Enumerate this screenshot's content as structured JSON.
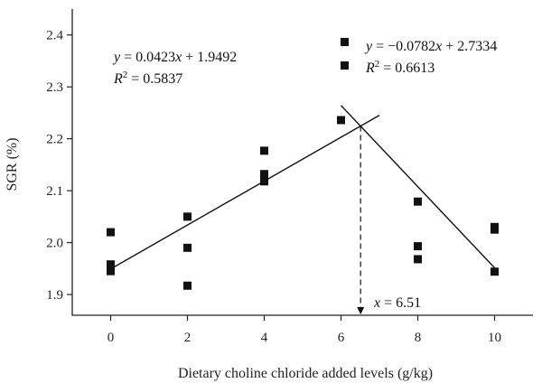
{
  "chart_data": {
    "type": "scatter",
    "title": "",
    "xlabel": "Dietary choline chloride added levels (g/kg)",
    "ylabel": "SGR (%)",
    "xlim": [
      -1,
      11
    ],
    "ylim": [
      1.86,
      2.45
    ],
    "xticks": [
      0,
      2,
      4,
      6,
      8,
      10
    ],
    "xtick_labels": [
      "0",
      "2",
      "4",
      "6",
      "8",
      "10"
    ],
    "yticks": [
      1.9,
      2.0,
      2.1,
      2.2,
      2.3,
      2.4
    ],
    "ytick_labels": [
      "1.9",
      "2.0",
      "2.1",
      "2.2",
      "2.3",
      "2.4"
    ],
    "grid": false,
    "points": [
      {
        "x": 0,
        "y": 2.02
      },
      {
        "x": 0,
        "y": 1.958
      },
      {
        "x": 0,
        "y": 1.945
      },
      {
        "x": 2,
        "y": 2.05
      },
      {
        "x": 2,
        "y": 1.99
      },
      {
        "x": 2,
        "y": 1.917
      },
      {
        "x": 4,
        "y": 2.177
      },
      {
        "x": 4,
        "y": 2.132
      },
      {
        "x": 4,
        "y": 2.118
      },
      {
        "x": 6,
        "y": 2.236
      },
      {
        "x": 8,
        "y": 2.079
      },
      {
        "x": 8,
        "y": 1.993
      },
      {
        "x": 8,
        "y": 1.968
      },
      {
        "x": 10,
        "y": 2.03
      },
      {
        "x": 10,
        "y": 2.025
      },
      {
        "x": 10,
        "y": 1.944
      }
    ],
    "fits": [
      {
        "x_range": [
          0,
          7
        ],
        "slope": 0.0423,
        "intercept": 1.9492
      },
      {
        "x_range": [
          6,
          10
        ],
        "slope": -0.0782,
        "intercept": 2.7334
      }
    ],
    "intersection_x": 6.51,
    "annotations": {
      "fit1_eq": "y = 0.0423x + 1.9492",
      "fit1_r2": "R² = 0.5837",
      "fit2_eq": "y = −0.0782x + 2.7334",
      "fit2_r2": "R² = 0.6613",
      "x_marker": "x = 6.51"
    }
  }
}
